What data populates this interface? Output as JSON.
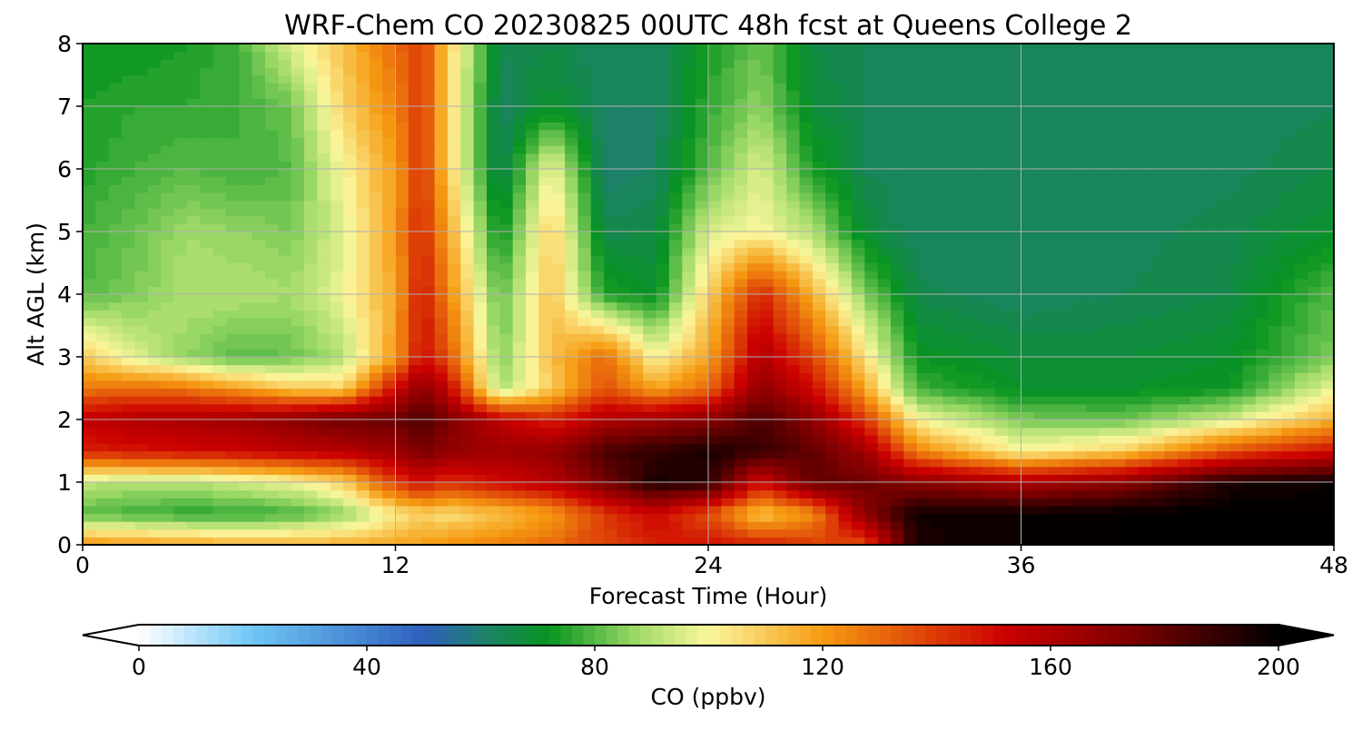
{
  "chart_data": {
    "type": "heatmap",
    "title": "WRF-Chem CO  20230825 00UTC 48h fcst at Queens College 2",
    "xlabel": "Forecast Time (Hour)",
    "ylabel": "Alt AGL (km)",
    "xlim": [
      0,
      48
    ],
    "ylim": [
      0,
      8
    ],
    "x_ticks": [
      0,
      12,
      24,
      36,
      48
    ],
    "x_tick_labels": [
      "0",
      "12",
      "24",
      "36",
      "48"
    ],
    "y_ticks": [
      0,
      1,
      2,
      3,
      4,
      5,
      6,
      7,
      8
    ],
    "y_tick_labels": [
      "0",
      "1",
      "2",
      "3",
      "4",
      "5",
      "6",
      "7",
      "8"
    ],
    "grid": true,
    "colorbar": {
      "label": "CO  (ppbv)",
      "range": [
        0,
        200
      ],
      "extend": "both",
      "ticks": [
        0,
        40,
        80,
        120,
        160,
        200
      ],
      "tick_labels": [
        "0",
        "40",
        "80",
        "120",
        "160",
        "200"
      ],
      "color_stops": [
        {
          "value": 0,
          "color": "#ffffff"
        },
        {
          "value": 20,
          "color": "#6ec6f5"
        },
        {
          "value": 50,
          "color": "#2d60bd"
        },
        {
          "value": 60,
          "color": "#1e7f6e"
        },
        {
          "value": 72,
          "color": "#07951f"
        },
        {
          "value": 88,
          "color": "#a4dc6a"
        },
        {
          "value": 100,
          "color": "#fbf79c"
        },
        {
          "value": 120,
          "color": "#f69b12"
        },
        {
          "value": 152,
          "color": "#cc0000"
        },
        {
          "value": 175,
          "color": "#7a0000"
        },
        {
          "value": 200,
          "color": "#000000"
        }
      ]
    },
    "times": [
      0,
      2,
      4,
      6,
      8,
      10,
      12,
      13,
      14,
      16,
      18,
      20,
      22,
      24,
      26,
      28,
      30,
      32,
      36,
      40,
      44,
      48
    ],
    "altitudes_km": [
      0,
      0.5,
      1,
      1.5,
      2,
      2.5,
      3,
      4,
      5,
      6,
      7,
      8
    ],
    "co_ppbv": [
      [
        122,
        120,
        118,
        116,
        116,
        116,
        118,
        120,
        122,
        125,
        130,
        138,
        145,
        150,
        146,
        140,
        135,
        195,
        198,
        200,
        200,
        200
      ],
      [
        80,
        78,
        76,
        76,
        78,
        86,
        102,
        108,
        105,
        112,
        120,
        140,
        152,
        135,
        110,
        122,
        170,
        196,
        198,
        200,
        200,
        200
      ],
      [
        92,
        90,
        90,
        94,
        98,
        108,
        140,
        150,
        142,
        150,
        158,
        175,
        195,
        192,
        150,
        180,
        178,
        170,
        160,
        170,
        195,
        198
      ],
      [
        145,
        148,
        150,
        152,
        156,
        158,
        165,
        175,
        168,
        165,
        168,
        185,
        190,
        195,
        188,
        180,
        165,
        125,
        100,
        110,
        135,
        150
      ],
      [
        155,
        160,
        162,
        165,
        170,
        178,
        178,
        185,
        175,
        155,
        145,
        160,
        165,
        170,
        185,
        170,
        140,
        100,
        84,
        82,
        95,
        115
      ],
      [
        128,
        130,
        128,
        120,
        110,
        108,
        150,
        170,
        155,
        88,
        110,
        135,
        118,
        130,
        170,
        150,
        118,
        78,
        70,
        70,
        72,
        98
      ],
      [
        110,
        96,
        86,
        80,
        82,
        90,
        120,
        150,
        135,
        84,
        112,
        130,
        100,
        118,
        160,
        138,
        105,
        72,
        68,
        68,
        70,
        84
      ],
      [
        80,
        84,
        90,
        90,
        88,
        98,
        118,
        148,
        125,
        80,
        112,
        75,
        70,
        108,
        145,
        115,
        85,
        65,
        62,
        64,
        66,
        80
      ],
      [
        78,
        82,
        88,
        86,
        84,
        96,
        120,
        145,
        118,
        70,
        110,
        65,
        66,
        95,
        100,
        90,
        68,
        62,
        62,
        63,
        65,
        70
      ],
      [
        75,
        78,
        80,
        78,
        80,
        100,
        120,
        142,
        110,
        62,
        100,
        60,
        62,
        80,
        96,
        74,
        64,
        62,
        62,
        62,
        63,
        66
      ],
      [
        74,
        76,
        76,
        78,
        82,
        108,
        125,
        140,
        108,
        62,
        70,
        62,
        62,
        76,
        86,
        68,
        64,
        62,
        62,
        62,
        62,
        64
      ],
      [
        72,
        72,
        74,
        78,
        96,
        112,
        130,
        140,
        110,
        64,
        66,
        62,
        62,
        74,
        82,
        66,
        64,
        62,
        62,
        62,
        62,
        64
      ]
    ]
  }
}
